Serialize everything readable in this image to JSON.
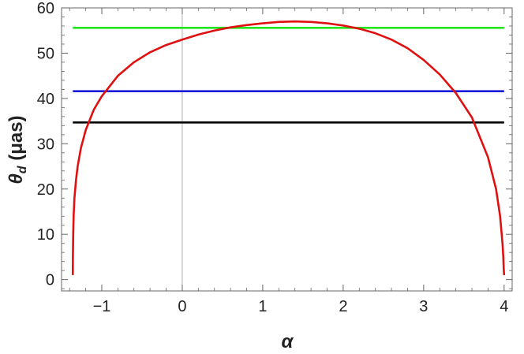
{
  "chart_data": {
    "type": "line",
    "title": "",
    "xlabel": "α",
    "ylabel": {
      "symbol": "θ",
      "subscript": "d",
      "unit": " (μas)"
    },
    "xlim": [
      -1.5,
      4.1
    ],
    "ylim": [
      -2.5,
      60
    ],
    "x_ticks": [
      -1,
      0,
      1,
      2,
      3,
      4
    ],
    "x_tick_labels": [
      "−1",
      "0",
      "1",
      "2",
      "3",
      "4"
    ],
    "y_ticks": [
      0,
      10,
      20,
      30,
      40,
      50,
      60
    ],
    "y_tick_labels": [
      "0",
      "10",
      "20",
      "30",
      "40",
      "50",
      "60"
    ],
    "x_minor_step": 0.2,
    "y_minor_step": 2,
    "grid": false,
    "vertical_reference_x": 0,
    "legend": "none",
    "series": [
      {
        "kind": "horizontal",
        "y": 55.6,
        "color": "#22e51c",
        "x_range": [
          -1.36,
          4.0
        ]
      },
      {
        "kind": "horizontal",
        "y": 41.6,
        "color": "#1a1adb",
        "x_range": [
          -1.36,
          4.0
        ]
      },
      {
        "kind": "horizontal",
        "y": 34.7,
        "color": "#000000",
        "x_range": [
          -1.36,
          4.0
        ]
      },
      {
        "kind": "curve",
        "color": "#e01010",
        "x": [
          -1.36,
          -1.359,
          -1.355,
          -1.35,
          -1.34,
          -1.32,
          -1.3,
          -1.26,
          -1.2,
          -1.1,
          -1.0,
          -0.8,
          -0.6,
          -0.4,
          -0.2,
          0.0,
          0.2,
          0.4,
          0.6,
          0.8,
          1.0,
          1.2,
          1.4,
          1.6,
          1.8,
          2.0,
          2.2,
          2.4,
          2.6,
          2.8,
          3.0,
          3.2,
          3.4,
          3.6,
          3.8,
          3.9,
          3.95,
          3.98,
          3.99,
          3.995,
          4.0
        ],
        "y": [
          1.0,
          5.0,
          10.0,
          14.0,
          18.0,
          22.0,
          25.0,
          29.0,
          33.0,
          37.5,
          40.5,
          45.0,
          48.0,
          50.2,
          51.8,
          53.0,
          54.1,
          55.0,
          55.7,
          56.2,
          56.6,
          56.9,
          57.0,
          56.9,
          56.6,
          56.1,
          55.4,
          54.4,
          53.0,
          51.1,
          48.5,
          45.3,
          41.2,
          35.8,
          27.0,
          20.0,
          14.0,
          8.0,
          5.0,
          2.5,
          1.0
        ]
      }
    ]
  }
}
